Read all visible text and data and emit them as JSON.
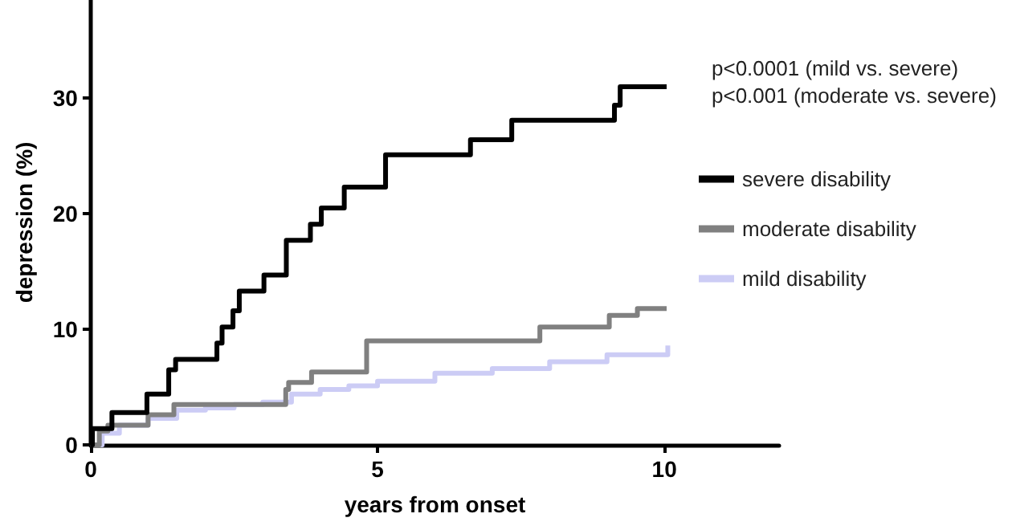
{
  "chart_data": {
    "type": "step",
    "xlabel": "years from onset",
    "ylabel": "depression (%)",
    "xlim": [
      0,
      12
    ],
    "xticks": [
      0,
      5,
      10
    ],
    "ylim": [
      0,
      38.5
    ],
    "yticks": [
      0,
      10,
      20,
      30
    ],
    "grid": false,
    "legend": "right",
    "marker": "none",
    "line_style": "solid",
    "annotations": [
      "p<0.0001 (mild vs. severe)",
      "p<0.001 (moderate vs. severe)"
    ],
    "series": [
      {
        "name": "severe disability",
        "color": "#000000",
        "x": [
          0,
          0.03,
          0.37,
          0.98,
          1.36,
          1.48,
          2.2,
          2.29,
          2.48,
          2.59,
          3.02,
          3.41,
          3.83,
          4.02,
          4.42,
          5.14,
          6.62,
          7.34,
          9.13,
          9.23,
          10.04
        ],
        "values": [
          0,
          1.4,
          2.8,
          4.4,
          6.5,
          7.4,
          8.8,
          10.2,
          11.6,
          13.3,
          14.7,
          17.7,
          19.1,
          20.5,
          22.3,
          25.1,
          26.4,
          28.1,
          29.4,
          31.0,
          31.0
        ]
      },
      {
        "name": "moderate disability",
        "color": "#808080",
        "x": [
          0,
          0.15,
          0.3,
          1.0,
          1.45,
          3.4,
          3.45,
          3.85,
          4.81,
          7.83,
          9.04,
          9.53,
          10.04
        ],
        "values": [
          0,
          1.2,
          1.7,
          2.6,
          3.5,
          4.8,
          5.4,
          6.3,
          9.0,
          10.2,
          11.2,
          11.8,
          11.8
        ]
      },
      {
        "name": "mild disability",
        "color": "#ccccf5",
        "x": [
          0,
          0.2,
          0.5,
          1.0,
          1.5,
          2.0,
          2.5,
          3.0,
          3.5,
          4.0,
          4.5,
          5.0,
          6.0,
          7.0,
          8.0,
          9.0,
          10.06
        ],
        "values": [
          0,
          1.0,
          1.7,
          2.3,
          3.0,
          3.2,
          3.5,
          3.7,
          4.4,
          4.8,
          5.1,
          5.5,
          6.2,
          6.6,
          7.2,
          7.8,
          8.6
        ]
      }
    ]
  }
}
